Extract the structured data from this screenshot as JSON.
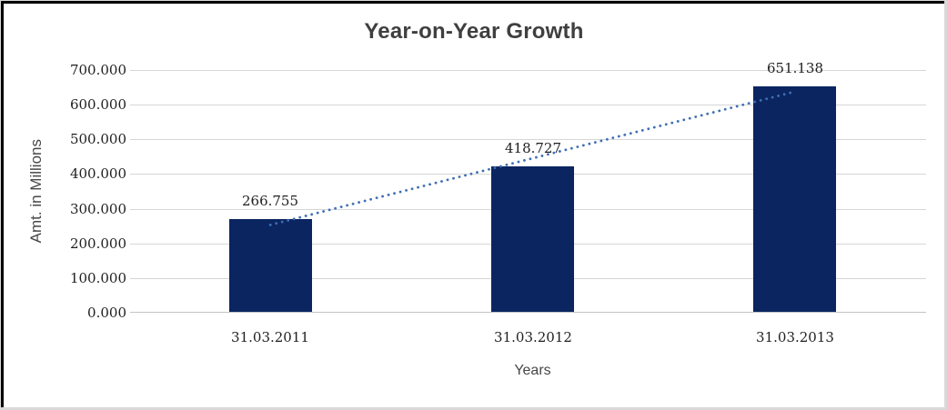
{
  "chart_data": {
    "type": "bar",
    "title": "Year-on-Year Growth",
    "xlabel": "Years",
    "ylabel": "Amt. in Millions",
    "categories": [
      "31.03.2011",
      "31.03.2012",
      "31.03.2013"
    ],
    "values": [
      266.755,
      418.727,
      651.138
    ],
    "data_labels": [
      "266.755",
      "418.727",
      "651.138"
    ],
    "y_tick_labels_top_to_bottom": [
      "700.000",
      "600.000",
      "500.000",
      "400.000",
      "300.000",
      "200.000",
      "100.000",
      "0.000"
    ],
    "ylim": [
      0,
      700
    ],
    "y_tick_step": 100,
    "grid": true,
    "legend": false,
    "trendline": {
      "type": "linear",
      "style": "dotted",
      "span": "first-category-center-to-last-category-center"
    },
    "colors": {
      "bar": "#0a2560",
      "trendline": "#3f6fb3",
      "gridline": "#d6d6d6",
      "baseline": "#c4c4c4",
      "title_text": "#3f3f3f",
      "axis_title_text": "#474747",
      "tick_label_text": "#1f1f1f",
      "frame_dark": "#000000",
      "frame_light": "#d9d9d9"
    }
  }
}
